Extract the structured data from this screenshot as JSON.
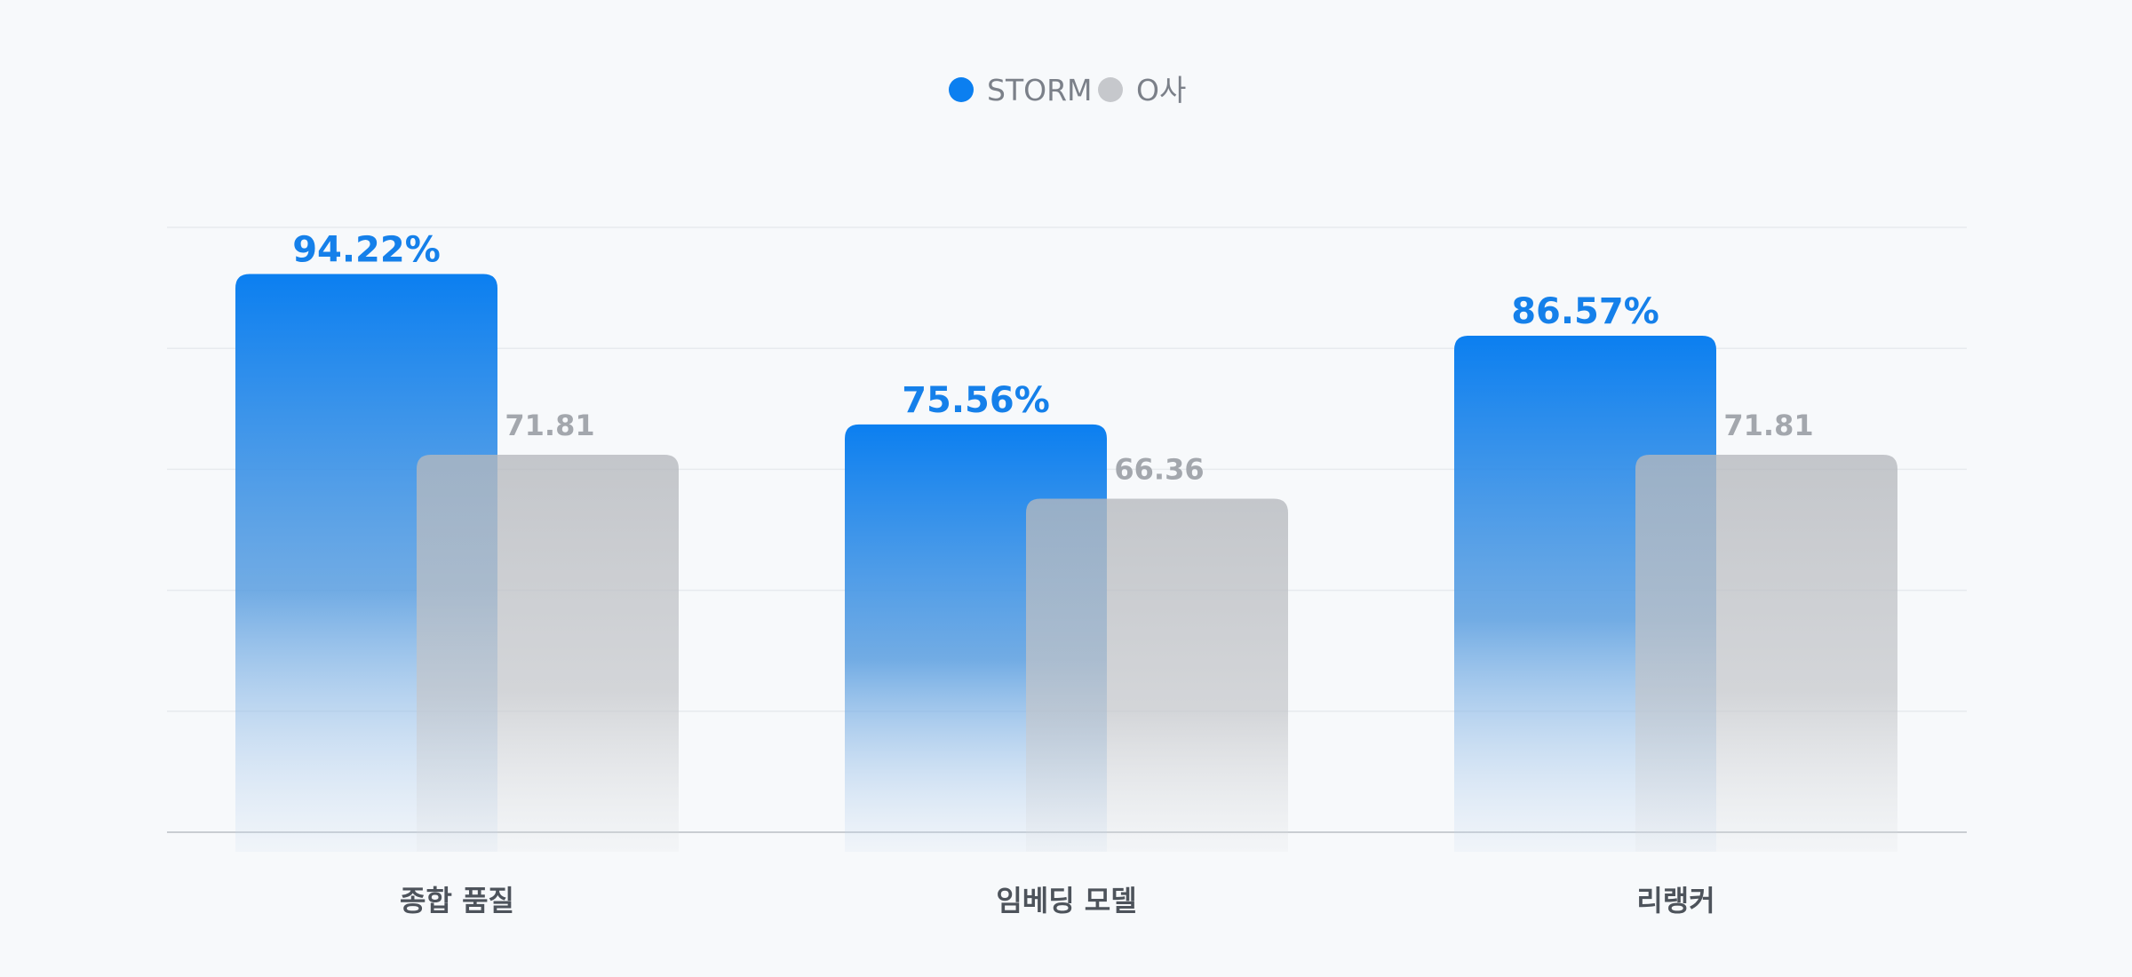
{
  "chart_data": {
    "type": "bar",
    "categories": [
      "종합 품질",
      "임베딩 모델",
      "리랭커"
    ],
    "series": [
      {
        "name": "STORM",
        "values": [
          94.22,
          75.56,
          86.57
        ],
        "labels": [
          "94.22%",
          "75.56%",
          "86.57%"
        ],
        "color": "#0b7ff0"
      },
      {
        "name": "O사",
        "values": [
          71.81,
          66.36,
          71.81
        ],
        "labels": [
          "71.81",
          "66.36",
          "71.81"
        ],
        "color": "#c6c8cc"
      }
    ],
    "ylim": [
      25,
      100
    ],
    "grid": true,
    "legend": "top-center"
  }
}
